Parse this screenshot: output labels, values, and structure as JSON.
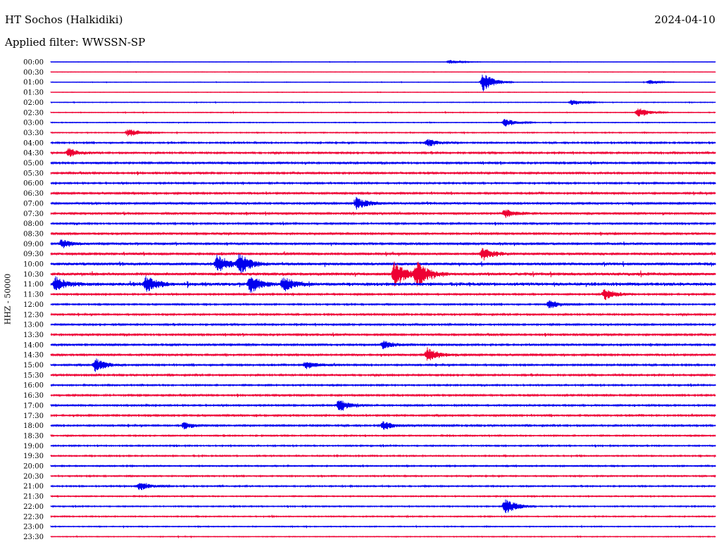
{
  "header": {
    "station": "HT Sochos (Halkidiki)",
    "date": "2024-04-10",
    "filter": "Applied filter: WWSSN-SP"
  },
  "colors": {
    "trace_a": "#0000ee",
    "trace_b": "#ee0033"
  },
  "chart_data": {
    "type": "line",
    "title": "HT Sochos (Halkidiki)",
    "ylabel": "HHZ - 50000",
    "grid": false,
    "legend": "none",
    "rows": [
      "00:00",
      "00:30",
      "01:00",
      "01:30",
      "02:00",
      "02:30",
      "03:00",
      "03:30",
      "04:00",
      "04:30",
      "05:00",
      "05:30",
      "06:00",
      "06:30",
      "07:00",
      "07:30",
      "08:00",
      "08:30",
      "09:00",
      "09:30",
      "10:00",
      "10:30",
      "11:00",
      "11:30",
      "12:00",
      "12:30",
      "13:00",
      "13:30",
      "14:00",
      "14:30",
      "15:00",
      "15:30",
      "16:00",
      "16:30",
      "17:00",
      "17:30",
      "18:00",
      "18:30",
      "19:00",
      "19:30",
      "20:00",
      "20:30",
      "21:00",
      "21:30",
      "22:00",
      "22:30",
      "23:00",
      "23:30"
    ],
    "row_activity": [
      0.2,
      0.25,
      0.3,
      0.25,
      0.35,
      0.4,
      0.4,
      0.5,
      0.8,
      0.9,
      1.0,
      1.0,
      0.9,
      1.0,
      1.1,
      1.1,
      0.9,
      1.1,
      1.2,
      1.2,
      1.5,
      1.6,
      1.8,
      0.9,
      0.8,
      0.9,
      0.9,
      1.0,
      1.0,
      1.0,
      0.9,
      0.9,
      0.8,
      0.9,
      0.9,
      0.9,
      0.9,
      0.7,
      0.7,
      0.7,
      0.7,
      0.7,
      0.7,
      0.6,
      0.6,
      0.6,
      0.5,
      0.4
    ],
    "events": [
      {
        "row": "00:00",
        "minute": 18,
        "amp": 3
      },
      {
        "row": "01:00",
        "minute": 19.5,
        "amp": 14
      },
      {
        "row": "01:00",
        "minute": 27,
        "amp": 3
      },
      {
        "row": "02:00",
        "minute": 23.5,
        "amp": 4
      },
      {
        "row": "02:30",
        "minute": 26.5,
        "amp": 7
      },
      {
        "row": "03:00",
        "minute": 20.5,
        "amp": 6
      },
      {
        "row": "03:30",
        "minute": 3.5,
        "amp": 6
      },
      {
        "row": "04:00",
        "minute": 17,
        "amp": 6
      },
      {
        "row": "04:30",
        "minute": 0.8,
        "amp": 6
      },
      {
        "row": "07:00",
        "minute": 13.8,
        "amp": 9
      },
      {
        "row": "07:30",
        "minute": 20.5,
        "amp": 6
      },
      {
        "row": "09:00",
        "minute": 0.5,
        "amp": 6
      },
      {
        "row": "09:30",
        "minute": 19.5,
        "amp": 9
      },
      {
        "row": "10:00",
        "minute": 7.5,
        "amp": 13
      },
      {
        "row": "10:00",
        "minute": 8.5,
        "amp": 14
      },
      {
        "row": "10:30",
        "minute": 15.5,
        "amp": 18
      },
      {
        "row": "10:30",
        "minute": 16.5,
        "amp": 18
      },
      {
        "row": "11:00",
        "minute": 0.2,
        "amp": 10
      },
      {
        "row": "11:00",
        "minute": 4.3,
        "amp": 11
      },
      {
        "row": "11:00",
        "minute": 9,
        "amp": 12
      },
      {
        "row": "11:00",
        "minute": 10.5,
        "amp": 10
      },
      {
        "row": "11:30",
        "minute": 25,
        "amp": 8
      },
      {
        "row": "12:00",
        "minute": 22.5,
        "amp": 6
      },
      {
        "row": "14:00",
        "minute": 15,
        "amp": 6
      },
      {
        "row": "14:30",
        "minute": 17,
        "amp": 10
      },
      {
        "row": "15:00",
        "minute": 2,
        "amp": 10
      },
      {
        "row": "15:00",
        "minute": 11.5,
        "amp": 6
      },
      {
        "row": "17:00",
        "minute": 13,
        "amp": 8
      },
      {
        "row": "18:00",
        "minute": 15,
        "amp": 6
      },
      {
        "row": "18:00",
        "minute": 6,
        "amp": 5
      },
      {
        "row": "21:00",
        "minute": 4,
        "amp": 6
      },
      {
        "row": "22:00",
        "minute": 20.5,
        "amp": 12
      }
    ]
  }
}
